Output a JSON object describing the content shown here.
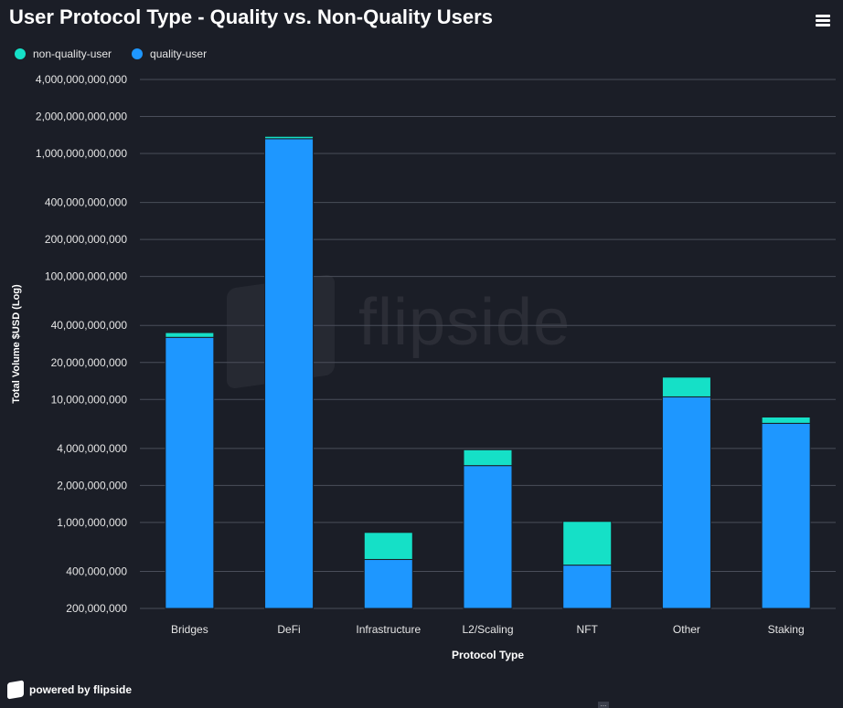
{
  "title": "User Protocol Type - Quality vs. Non-Quality Users",
  "legend": [
    {
      "name": "non-quality-user",
      "color": "#15e0c7"
    },
    {
      "name": "quality-user",
      "color": "#1e97ff"
    }
  ],
  "watermark": "flipside",
  "footer": {
    "label": "powered by flipside"
  },
  "chart_data": {
    "type": "bar",
    "stacked": true,
    "yscale": "log",
    "title": "User Protocol Type - Quality vs. Non-Quality Users",
    "xlabel": "Protocol Type",
    "ylabel": "Total Volume $USD (Log)",
    "ylim": [
      200000000,
      4000000000000
    ],
    "yticks": [
      200000000,
      400000000,
      1000000000,
      2000000000,
      4000000000,
      10000000000,
      20000000000,
      40000000000,
      100000000000,
      200000000000,
      400000000000,
      1000000000000,
      2000000000000,
      4000000000000
    ],
    "ytick_labels": [
      "200,000,000",
      "400,000,000",
      "1,000,000,000",
      "2,000,000,000",
      "4,000,000,000",
      "10,000,000,000",
      "20,000,000,000",
      "40,000,000,000",
      "100,000,000,000",
      "200,000,000,000",
      "400,000,000,000",
      "1,000,000,000,000",
      "2,000,000,000,000",
      "4,000,000,000,000"
    ],
    "categories": [
      "Bridges",
      "DeFi",
      "Infrastructure",
      "L2/Scaling",
      "NFT",
      "Other",
      "Staking"
    ],
    "series": [
      {
        "name": "quality-user",
        "color": "#1e97ff",
        "values": [
          32000000000,
          1320000000000,
          500000000,
          2900000000,
          450000000,
          10500000000,
          6400000000
        ]
      },
      {
        "name": "non-quality-user",
        "color": "#15e0c7",
        "values": [
          3000000000,
          60000000000,
          330000000,
          1000000000,
          570000000,
          4700000000,
          800000000
        ]
      }
    ],
    "grid": true,
    "legend_position": "top-left"
  }
}
